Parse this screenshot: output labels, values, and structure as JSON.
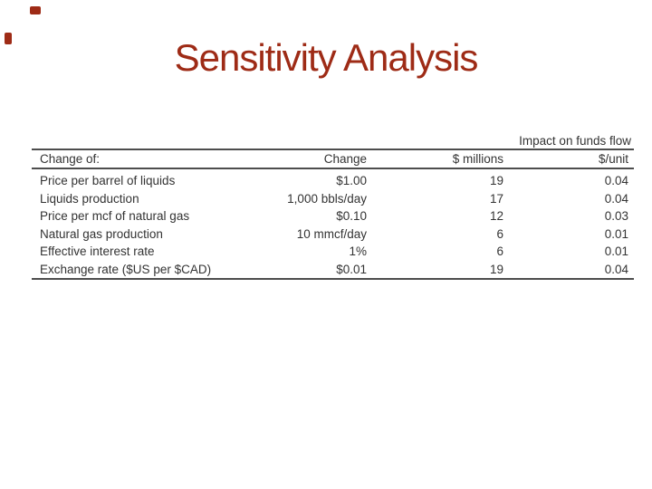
{
  "colors": {
    "accent": "#9e2b16",
    "table_text": "#333333",
    "rule": "#4d4d4d",
    "background": "#ffffff"
  },
  "slide": {
    "title": "Sensitivity Analysis"
  },
  "table": {
    "spanner_header": "Impact on funds flow",
    "columns": {
      "change_of": "Change of:",
      "change": "Change",
      "millions": "$ millions",
      "per_unit": "$/unit"
    },
    "rows": [
      {
        "label": "Price per barrel of liquids",
        "change": "$1.00",
        "millions": "19",
        "per_unit": "0.04"
      },
      {
        "label": "Liquids production",
        "change": "1,000 bbls/day",
        "millions": "17",
        "per_unit": "0.04"
      },
      {
        "label": "Price per mcf of natural gas",
        "change": "$0.10",
        "millions": "12",
        "per_unit": "0.03"
      },
      {
        "label": "Natural gas production",
        "change": "10 mmcf/day",
        "millions": "6",
        "per_unit": "0.01"
      },
      {
        "label": "Effective interest rate",
        "change": "1%",
        "millions": "6",
        "per_unit": "0.01"
      },
      {
        "label": "Exchange rate ($US per $CAD)",
        "change": "$0.01",
        "millions": "19",
        "per_unit": "0.04"
      }
    ]
  }
}
